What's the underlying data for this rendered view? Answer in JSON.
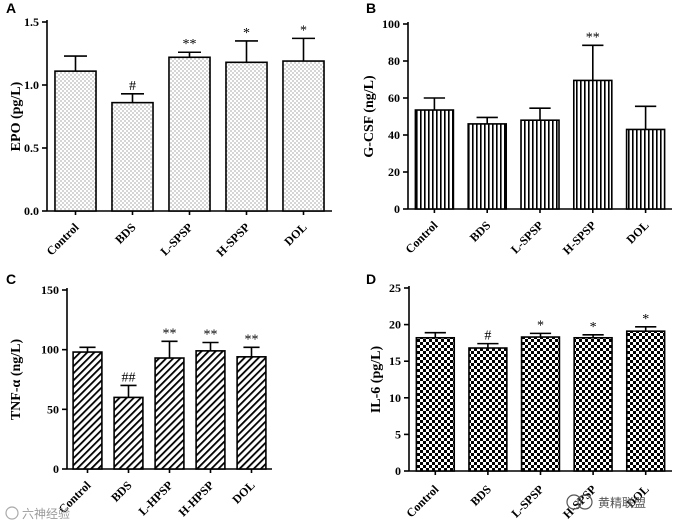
{
  "chart_data": [
    {
      "panel": "A",
      "type": "bar",
      "ylabel": "EPO (pg/L)",
      "categories": [
        "Control",
        "BDS",
        "L-SPSP",
        "H-SPSP",
        "DOL"
      ],
      "values": [
        1.11,
        0.86,
        1.22,
        1.18,
        1.19
      ],
      "errors": [
        0.12,
        0.07,
        0.04,
        0.17,
        0.18
      ],
      "significance": [
        "",
        "#",
        "**",
        "*",
        "*"
      ],
      "ylim": [
        0,
        1.5
      ],
      "yticks": [
        "0.0",
        "0.5",
        "1.0",
        "1.5"
      ],
      "pattern": "dots"
    },
    {
      "panel": "B",
      "type": "bar",
      "ylabel": "G-CSF (ng/L)",
      "categories": [
        "Control",
        "BDS",
        "L-SPSP",
        "H-SPSP",
        "DOL"
      ],
      "values": [
        53.5,
        46,
        48,
        69.5,
        43
      ],
      "errors": [
        6.5,
        3.5,
        6.5,
        19,
        12.5
      ],
      "significance": [
        "",
        "",
        "",
        "**",
        ""
      ],
      "ylim": [
        0,
        100
      ],
      "yticks": [
        "0",
        "20",
        "40",
        "60",
        "80",
        "100"
      ],
      "pattern": "vlines"
    },
    {
      "panel": "C",
      "type": "bar",
      "ylabel": "TNF-α (ng/L)",
      "categories": [
        "Control",
        "BDS",
        "L-HPSP",
        "H-HPSP",
        "DOL"
      ],
      "values": [
        98,
        60,
        93,
        99,
        94
      ],
      "errors": [
        4,
        10,
        14,
        7,
        8
      ],
      "significance": [
        "",
        "##",
        "**",
        "**",
        "**"
      ],
      "ylim": [
        0,
        150
      ],
      "yticks": [
        "0",
        "50",
        "100",
        "150"
      ],
      "pattern": "diag"
    },
    {
      "panel": "D",
      "type": "bar",
      "ylabel": "IL-6 (pg/L)",
      "categories": [
        "Control",
        "BDS",
        "L-SPSP",
        "H-SPSP",
        "DOL"
      ],
      "values": [
        18.2,
        16.8,
        18.3,
        18.2,
        19.1
      ],
      "errors": [
        0.7,
        0.6,
        0.5,
        0.4,
        0.6
      ],
      "significance": [
        "",
        "#",
        "*",
        "*",
        "*"
      ],
      "ylim": [
        0,
        25
      ],
      "yticks": [
        "0",
        "5",
        "10",
        "15",
        "20",
        "25"
      ],
      "pattern": "checker"
    }
  ],
  "watermark": {
    "left_text": "六神经验",
    "right_text": "黄精联盟"
  }
}
